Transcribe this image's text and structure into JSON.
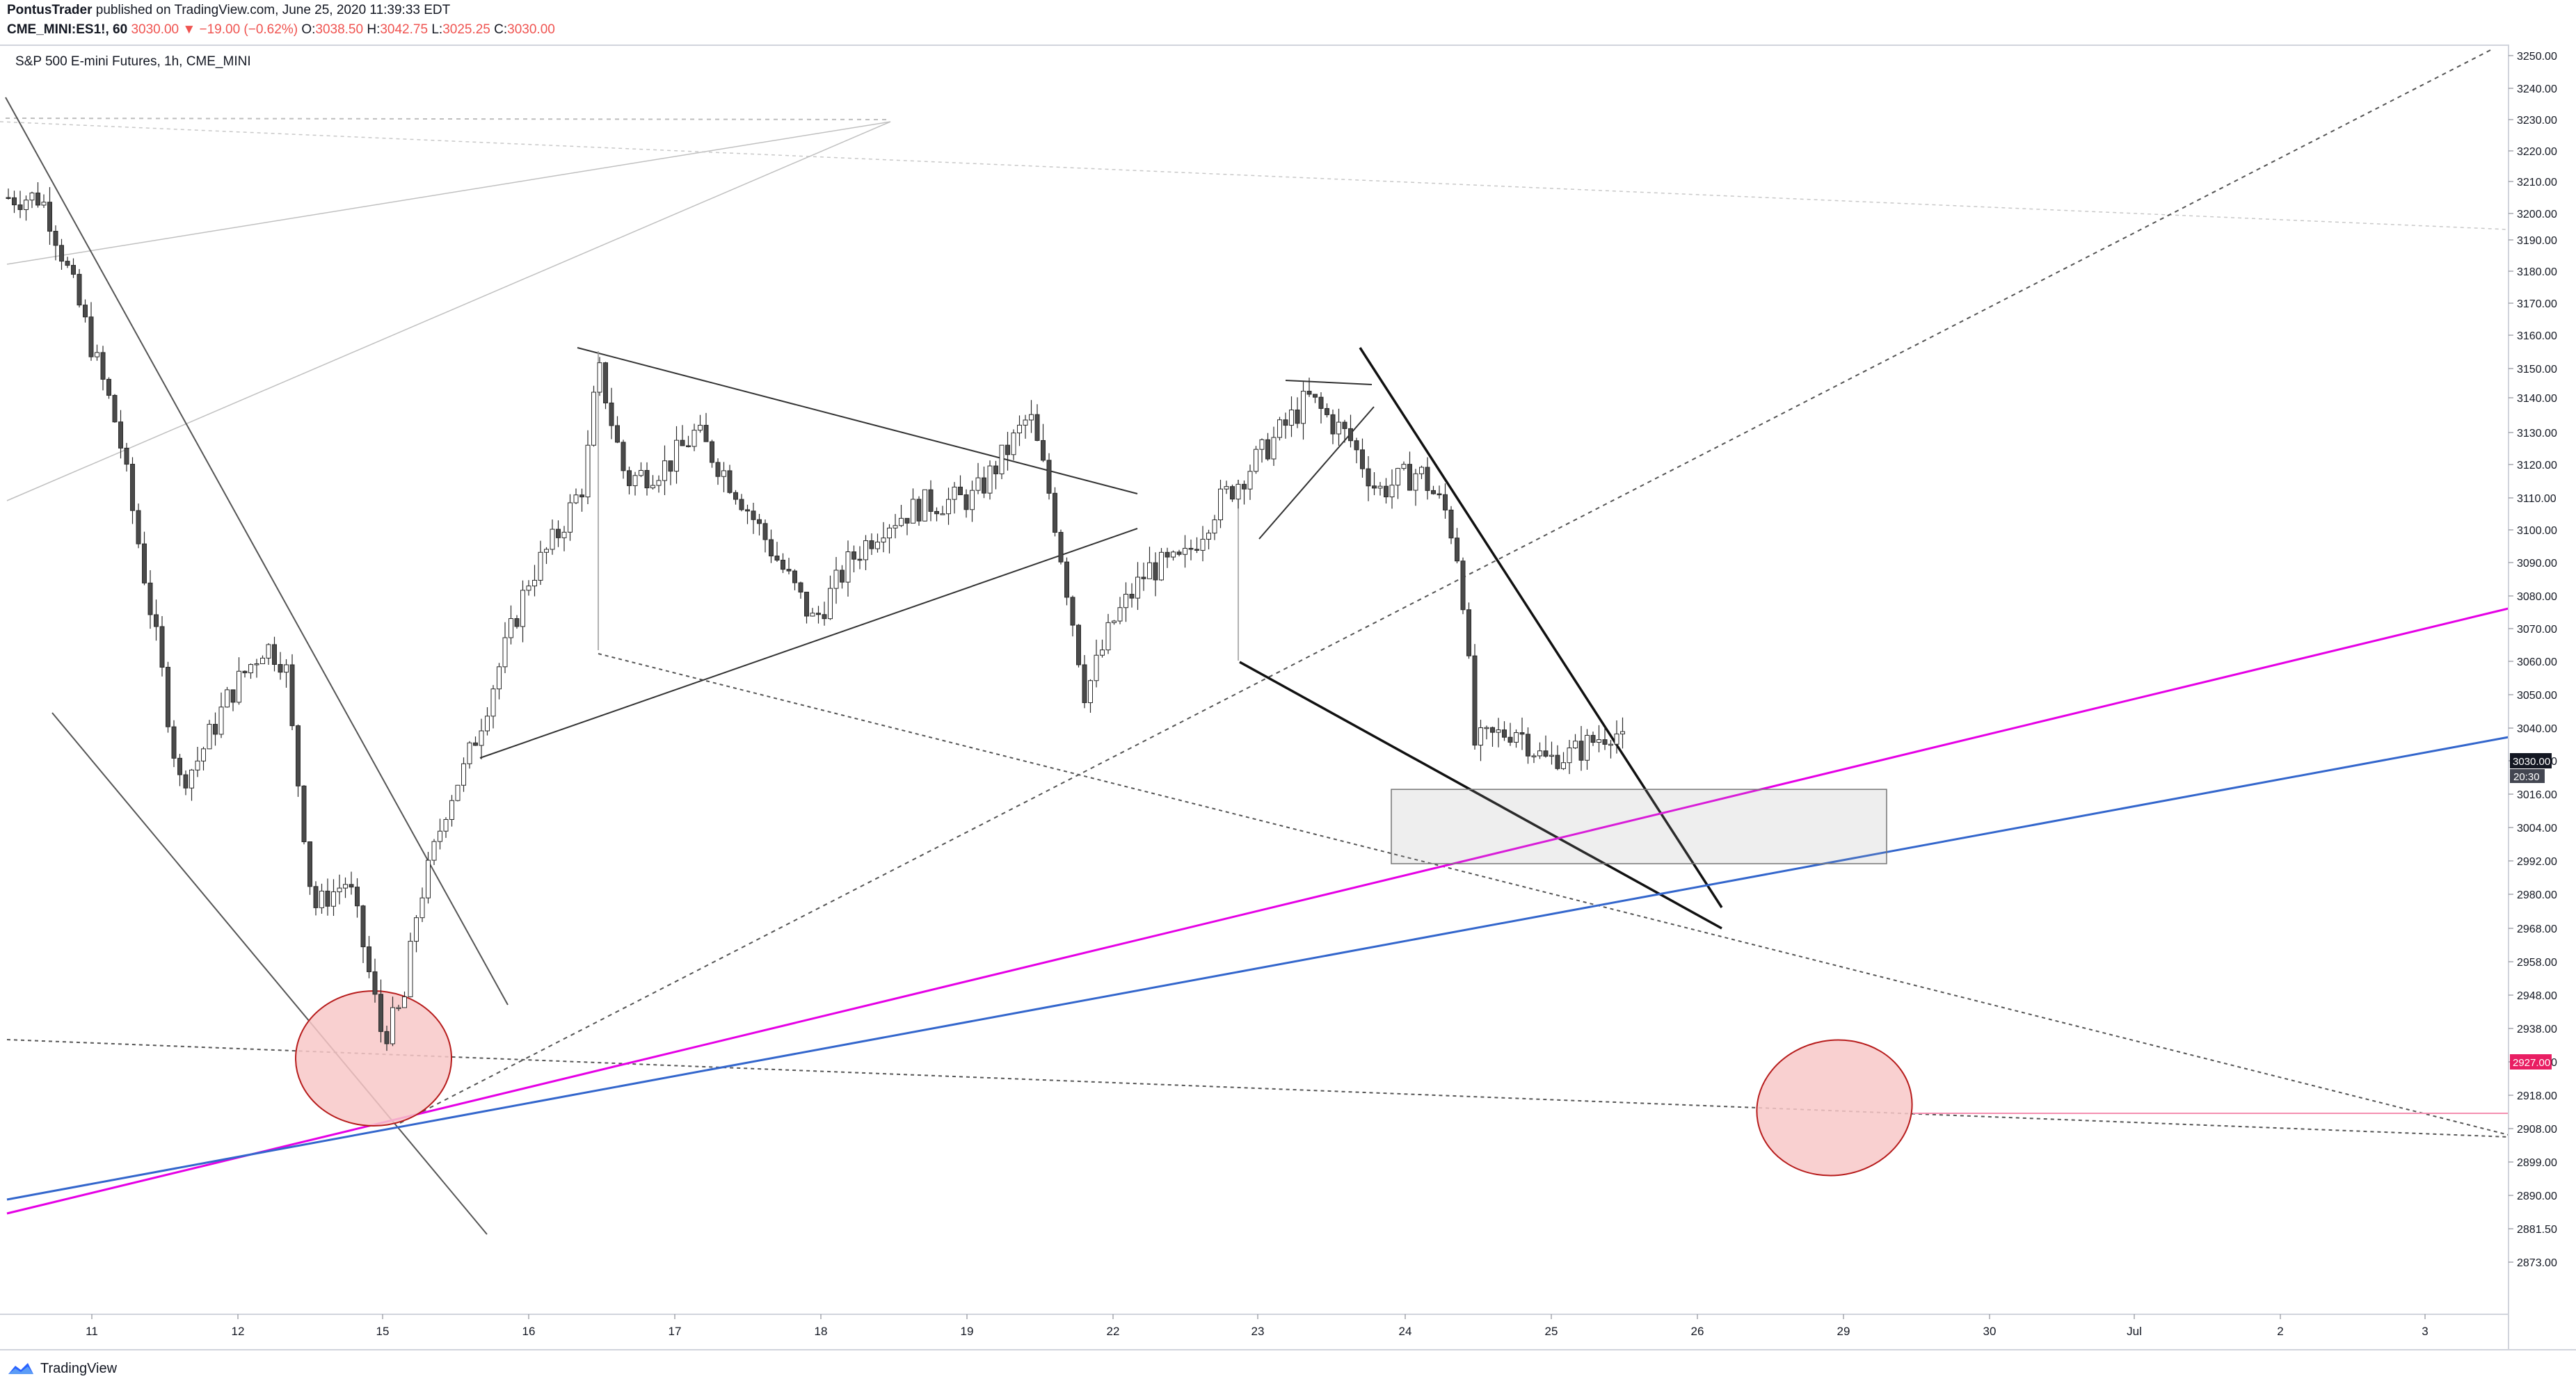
{
  "header": {
    "author": "PontusTrader",
    "published_text": "published on TradingView.com, June 25, 2020 11:39:33 EDT",
    "symbol": "CME_MINI:ES1!, 60",
    "last": "3030.00",
    "change": "▼ −19.00 (−0.62%)",
    "o_label": "O:",
    "o_value": "3038.50",
    "h_label": "H:",
    "h_value": "3042.75",
    "l_label": "L:",
    "l_value": "3025.25",
    "c_label": "C:",
    "c_value": "3030.00"
  },
  "chart_title": "S&P 500 E-mini Futures, 1h, CME_MINI",
  "footer": {
    "brand": "TradingView"
  },
  "colors": {
    "up_candle": "#ffffff",
    "down_candle": "#4a4a4a",
    "candle_border": "#2a2a2a",
    "magenta_line": "#e500e5",
    "blue_line": "#3366cc",
    "price_tag": "#131722",
    "target_tag": "#e91e63",
    "circle_fill": "#f8c8c8",
    "circle_stroke": "#b71c1c"
  },
  "chart_data": {
    "type": "candlestick",
    "yaxis_ticks": [
      "3250.00",
      "3240.00",
      "3230.00",
      "3220.00",
      "3210.00",
      "3200.00",
      "3190.00",
      "3180.00",
      "3170.00",
      "3160.00",
      "3150.00",
      "3140.00",
      "3130.00",
      "3120.00",
      "3110.00",
      "3100.00",
      "3090.00",
      "3080.00",
      "3070.00",
      "3060.00",
      "3050.00",
      "3040.00",
      "3030.00",
      "3016.00",
      "3004.00",
      "2992.00",
      "2980.00",
      "2968.00",
      "2958.00",
      "2948.00",
      "2938.00",
      "2927.00",
      "2918.00",
      "2908.00",
      "2899.00",
      "2890.00",
      "2881.50",
      "2873.00"
    ],
    "xaxis_ticks": [
      "11",
      "12",
      "15",
      "16",
      "17",
      "18",
      "19",
      "22",
      "23",
      "24",
      "25",
      "26",
      "29",
      "30",
      "Jul",
      "2",
      "3"
    ],
    "current_price_label": "3030.00",
    "countdown_label": "20:30",
    "target_price_label": "2927.00",
    "annotations": {
      "zone_low": 2991,
      "zone_high": 3018
    }
  }
}
